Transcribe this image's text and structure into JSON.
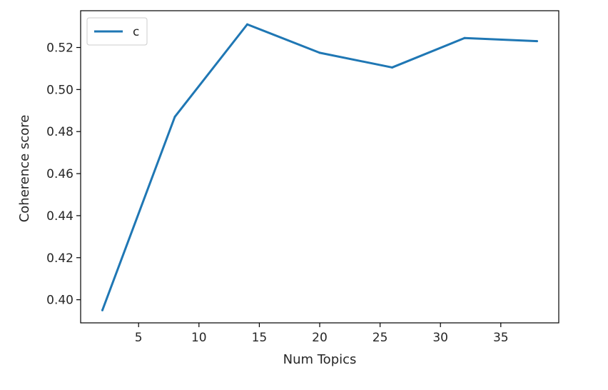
{
  "chart_data": {
    "type": "line",
    "title": "",
    "xlabel": "Num Topics",
    "ylabel": "Coherence score",
    "xlim": [
      0.2,
      39.8
    ],
    "ylim": [
      0.389,
      0.5375
    ],
    "xticks": [
      5,
      10,
      15,
      20,
      25,
      30,
      35
    ],
    "yticks": [
      0.4,
      0.42,
      0.44,
      0.46,
      0.48,
      0.5,
      0.52
    ],
    "ytick_labels": [
      "0.40",
      "0.42",
      "0.44",
      "0.46",
      "0.48",
      "0.50",
      "0.52"
    ],
    "grid": false,
    "legend_position": "upper left",
    "series": [
      {
        "name": "c",
        "color": "#1f77b4",
        "x": [
          2,
          8,
          14,
          20,
          26,
          32,
          38
        ],
        "y": [
          0.395,
          0.487,
          0.531,
          0.5175,
          0.5105,
          0.5245,
          0.523
        ]
      }
    ]
  }
}
